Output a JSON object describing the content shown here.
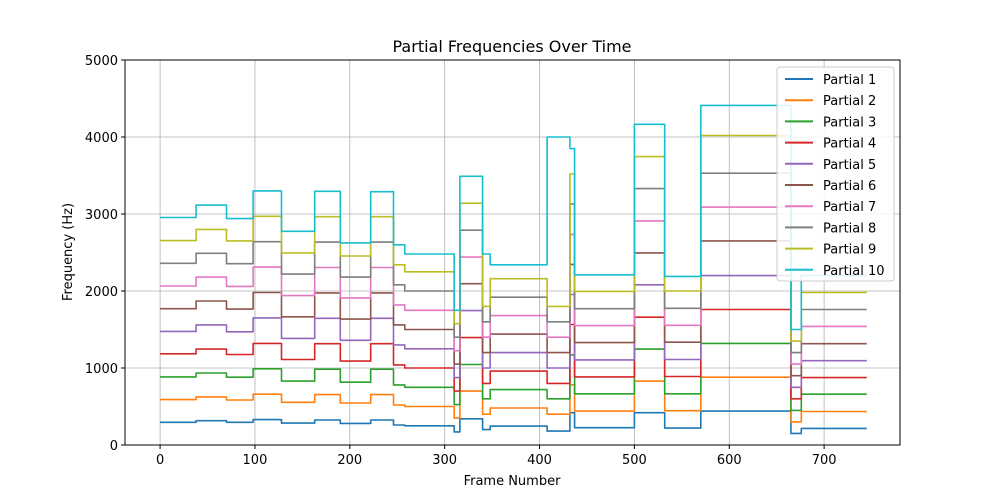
{
  "chart_data": {
    "type": "line",
    "title": "Partial Frequencies Over Time",
    "xlabel": "Frame Number",
    "ylabel": "Frequency (Hz)",
    "xlim": [
      -37,
      780
    ],
    "ylim": [
      0,
      5000
    ],
    "xticks": [
      0,
      100,
      200,
      300,
      400,
      500,
      600,
      700
    ],
    "yticks": [
      0,
      1000,
      2000,
      3000,
      4000,
      5000
    ],
    "grid": true,
    "legend_position": "top-right",
    "segments": [
      [
        0,
        38
      ],
      [
        38,
        70
      ],
      [
        70,
        98
      ],
      [
        98,
        128
      ],
      [
        128,
        163
      ],
      [
        163,
        190
      ],
      [
        190,
        222
      ],
      [
        222,
        246
      ],
      [
        246,
        258
      ],
      [
        258,
        310
      ],
      [
        310,
        316
      ],
      [
        316,
        340
      ],
      [
        340,
        348
      ],
      [
        348,
        408
      ],
      [
        408,
        432
      ],
      [
        432,
        437
      ],
      [
        437,
        500
      ],
      [
        500,
        532
      ],
      [
        532,
        570
      ],
      [
        570,
        665
      ],
      [
        665,
        676
      ],
      [
        676,
        745
      ]
    ],
    "series": [
      {
        "name": "Partial 1",
        "color": "#1f77b4",
        "values": [
          295,
          315,
          295,
          330,
          285,
          325,
          280,
          325,
          260,
          250,
          170,
          340,
          200,
          245,
          180,
          420,
          225,
          420,
          220,
          440,
          150,
          215
        ]
      },
      {
        "name": "Partial 2",
        "color": "#ff7f0e",
        "values": [
          590,
          625,
          585,
          660,
          555,
          655,
          545,
          655,
          520,
          500,
          350,
          700,
          400,
          480,
          400,
          780,
          440,
          830,
          445,
          880,
          300,
          435
        ]
      },
      {
        "name": "Partial 3",
        "color": "#2ca02c",
        "values": [
          885,
          935,
          880,
          990,
          830,
          985,
          815,
          985,
          780,
          750,
          525,
          1045,
          600,
          720,
          600,
          1170,
          665,
          1245,
          665,
          1320,
          450,
          660
        ]
      },
      {
        "name": "Partial 4",
        "color": "#d62728",
        "values": [
          1185,
          1245,
          1175,
          1320,
          1110,
          1315,
          1090,
          1315,
          1040,
          1000,
          700,
          1395,
          800,
          960,
          800,
          1565,
          885,
          1660,
          890,
          1760,
          600,
          875
        ]
      },
      {
        "name": "Partial 5",
        "color": "#9467bd",
        "values": [
          1475,
          1560,
          1470,
          1650,
          1385,
          1645,
          1360,
          1645,
          1300,
          1250,
          875,
          1745,
          1000,
          1200,
          1000,
          1955,
          1105,
          2080,
          1110,
          2200,
          750,
          1095
        ]
      },
      {
        "name": "Partial 6",
        "color": "#8c564b",
        "values": [
          1770,
          1870,
          1765,
          1980,
          1665,
          1975,
          1635,
          1975,
          1560,
          1500,
          1050,
          2095,
          1200,
          1440,
          1200,
          2345,
          1330,
          2495,
          1335,
          2650,
          900,
          1315
        ]
      },
      {
        "name": "Partial 7",
        "color": "#e377c2",
        "values": [
          2065,
          2180,
          2060,
          2310,
          1940,
          2305,
          1910,
          2305,
          1820,
          1750,
          1225,
          2440,
          1400,
          1680,
          1400,
          2735,
          1550,
          2910,
          1555,
          3090,
          1050,
          1540
        ]
      },
      {
        "name": "Partial 8",
        "color": "#7f7f7f",
        "values": [
          2360,
          2490,
          2355,
          2640,
          2220,
          2635,
          2180,
          2635,
          2080,
          2000,
          1400,
          2790,
          1600,
          1920,
          1600,
          3130,
          1770,
          3330,
          1775,
          3530,
          1200,
          1760
        ]
      },
      {
        "name": "Partial 9",
        "color": "#bcbd22",
        "values": [
          2655,
          2800,
          2650,
          2970,
          2495,
          2965,
          2455,
          2965,
          2340,
          2250,
          1575,
          3140,
          1800,
          2160,
          1800,
          3520,
          1995,
          3745,
          2000,
          4020,
          1350,
          1980
        ]
      },
      {
        "name": "Partial 10",
        "color": "#17becf",
        "values": [
          2955,
          3115,
          2940,
          3300,
          2775,
          3295,
          2625,
          3290,
          2600,
          2480,
          1750,
          3490,
          2480,
          2340,
          4000,
          3850,
          2210,
          4165,
          2190,
          4410,
          1500,
          2200
        ]
      }
    ]
  }
}
